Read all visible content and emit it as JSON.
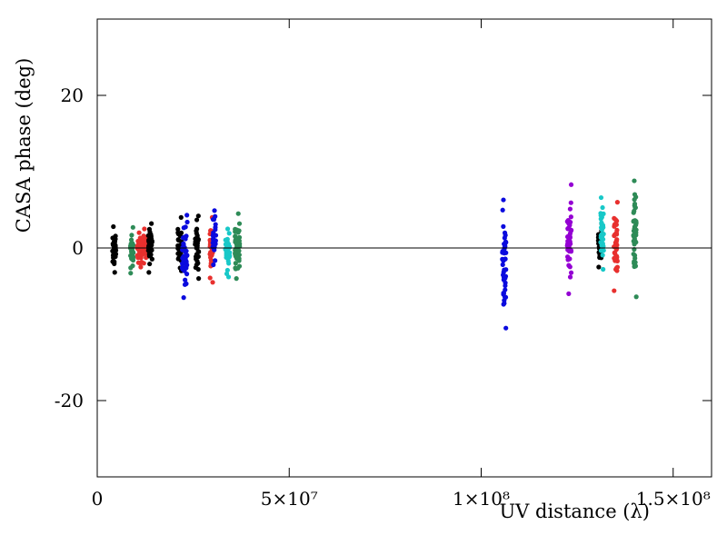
{
  "chart_data": {
    "type": "scatter",
    "title": "",
    "xlabel": "UV distance (λ)",
    "ylabel": "CASA phase (deg)",
    "xlim": [
      0,
      160000000
    ],
    "ylim": [
      -30,
      30
    ],
    "x_ticks": [
      {
        "value": 0,
        "label": "0"
      },
      {
        "value": 50000000,
        "label": "5×10⁷"
      },
      {
        "value": 100000000,
        "label": "1×10⁸"
      },
      {
        "value": 150000000,
        "label": "1.5×10⁸"
      }
    ],
    "y_ticks": [
      {
        "value": 20,
        "label": "20"
      },
      {
        "value": 0,
        "label": "0"
      },
      {
        "value": -20,
        "label": "-20"
      }
    ],
    "zero_line": true,
    "grid": false,
    "colors": {
      "black": "#000000",
      "green": "#2e8b57",
      "red": "#e8302e",
      "blue": "#0b0bde",
      "cyan": "#18c8c8",
      "purple": "#9400d3"
    },
    "clusters": [
      {
        "color": "black",
        "x": 4400000,
        "spread": 500000,
        "ymin": -3.2,
        "ymax": 2.8,
        "count": 40
      },
      {
        "color": "green",
        "x": 9000000,
        "spread": 400000,
        "ymin": -3.3,
        "ymax": 2.7,
        "count": 35
      },
      {
        "color": "red",
        "x": 11000000,
        "spread": 600000,
        "ymin": -2.5,
        "ymax": 2.0,
        "count": 35
      },
      {
        "color": "red",
        "x": 12300000,
        "spread": 600000,
        "ymin": -2.0,
        "ymax": 2.5,
        "count": 30
      },
      {
        "color": "black",
        "x": 13800000,
        "spread": 500000,
        "ymin": -3.2,
        "ymax": 3.2,
        "count": 40
      },
      {
        "color": "black",
        "x": 21500000,
        "spread": 500000,
        "ymin": -3.0,
        "ymax": 4.0,
        "count": 30
      },
      {
        "color": "blue",
        "x": 22800000,
        "spread": 700000,
        "ymin": -6.5,
        "ymax": 4.3,
        "count": 45
      },
      {
        "color": "black",
        "x": 26000000,
        "spread": 500000,
        "ymin": -4.0,
        "ymax": 4.2,
        "count": 35
      },
      {
        "color": "red",
        "x": 29700000,
        "spread": 400000,
        "ymin": -4.5,
        "ymax": 4.0,
        "count": 30
      },
      {
        "color": "blue",
        "x": 30500000,
        "spread": 400000,
        "ymin": -2.2,
        "ymax": 4.9,
        "count": 30
      },
      {
        "color": "cyan",
        "x": 34000000,
        "spread": 600000,
        "ymin": -3.8,
        "ymax": 2.5,
        "count": 35
      },
      {
        "color": "green",
        "x": 36500000,
        "spread": 600000,
        "ymin": -4.0,
        "ymax": 4.5,
        "count": 55
      },
      {
        "color": "blue",
        "x": 106000000,
        "spread": 500000,
        "ymin": -10.5,
        "ymax": 6.3,
        "count": 45
      },
      {
        "color": "purple",
        "x": 123000000,
        "spread": 600000,
        "ymin": -6.0,
        "ymax": 8.3,
        "count": 45
      },
      {
        "color": "black",
        "x": 131000000,
        "spread": 500000,
        "ymin": -2.5,
        "ymax": 3.2,
        "count": 30
      },
      {
        "color": "cyan",
        "x": 131500000,
        "spread": 400000,
        "ymin": -2.8,
        "ymax": 6.6,
        "count": 35
      },
      {
        "color": "red",
        "x": 135000000,
        "spread": 500000,
        "ymin": -5.6,
        "ymax": 6.0,
        "count": 40
      },
      {
        "color": "green",
        "x": 140000000,
        "spread": 400000,
        "ymin": -6.4,
        "ymax": 8.8,
        "count": 45
      }
    ]
  }
}
